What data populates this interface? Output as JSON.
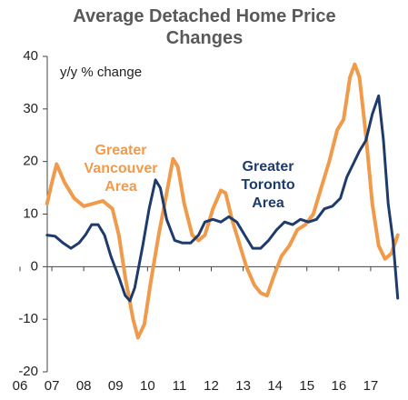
{
  "chart_data": {
    "type": "line",
    "title": "Average Detached Home Price Changes",
    "y_label": "y/y % change",
    "xlim": [
      2006,
      2018
    ],
    "xticks": [
      {
        "value": 2006,
        "label": "06"
      },
      {
        "value": 2007,
        "label": "07"
      },
      {
        "value": 2008,
        "label": "08"
      },
      {
        "value": 2009,
        "label": "09"
      },
      {
        "value": 2010,
        "label": "10"
      },
      {
        "value": 2011,
        "label": "11"
      },
      {
        "value": 2012,
        "label": "12"
      },
      {
        "value": 2013,
        "label": "13"
      },
      {
        "value": 2014,
        "label": "14"
      },
      {
        "value": 2015,
        "label": "15"
      },
      {
        "value": 2016,
        "label": "16"
      },
      {
        "value": 2017,
        "label": "17"
      }
    ],
    "ylim": [
      -20,
      40
    ],
    "yticks": [
      -20,
      -10,
      0,
      10,
      20,
      30,
      40
    ],
    "series": [
      {
        "name": "Greater Vancouver Area",
        "color": "#f09a4c",
        "x": [
          2006.85,
          2007.0,
          2007.15,
          2007.4,
          2007.7,
          2008.0,
          2008.3,
          2008.6,
          2008.9,
          2009.1,
          2009.3,
          2009.55,
          2009.7,
          2009.9,
          2010.1,
          2010.35,
          2010.6,
          2010.8,
          2010.95,
          2011.15,
          2011.4,
          2011.6,
          2011.8,
          2012.05,
          2012.3,
          2012.45,
          2012.65,
          2012.9,
          2013.1,
          2013.35,
          2013.55,
          2013.75,
          2013.95,
          2014.2,
          2014.45,
          2014.7,
          2014.95,
          2015.2,
          2015.45,
          2015.7,
          2015.95,
          2016.15,
          2016.35,
          2016.5,
          2016.65,
          2016.85,
          2017.05,
          2017.25,
          2017.45,
          2017.65,
          2017.85
        ],
        "values": [
          12,
          16,
          19.5,
          16,
          13,
          11.5,
          12,
          12.5,
          11,
          6,
          -2,
          -10,
          -13.5,
          -11,
          -3,
          6,
          14,
          20.5,
          19,
          12,
          6,
          5,
          6,
          11,
          14.5,
          14,
          9,
          4,
          0,
          -3.5,
          -5,
          -5.5,
          -2,
          2,
          4,
          7,
          8,
          10,
          15,
          20,
          26,
          28,
          36,
          38.5,
          36,
          25,
          12,
          4,
          1.5,
          2.5,
          6
        ]
      },
      {
        "name": "Greater Toronto Area",
        "color": "#1f3b6b",
        "x": [
          2006.85,
          2007.1,
          2007.35,
          2007.6,
          2007.85,
          2008.05,
          2008.25,
          2008.45,
          2008.65,
          2008.85,
          2009.1,
          2009.3,
          2009.45,
          2009.6,
          2009.85,
          2010.05,
          2010.25,
          2010.4,
          2010.6,
          2010.85,
          2011.1,
          2011.35,
          2011.6,
          2011.8,
          2012.05,
          2012.3,
          2012.55,
          2012.8,
          2013.05,
          2013.3,
          2013.55,
          2013.8,
          2014.05,
          2014.3,
          2014.55,
          2014.8,
          2015.05,
          2015.3,
          2015.55,
          2015.8,
          2016.05,
          2016.25,
          2016.45,
          2016.65,
          2016.85,
          2017.05,
          2017.25,
          2017.4,
          2017.55,
          2017.7,
          2017.85
        ],
        "values": [
          6,
          5.8,
          4.5,
          3.5,
          4.5,
          6,
          8,
          8,
          6,
          2,
          -2,
          -5.5,
          -6.5,
          -4,
          4,
          11,
          16.5,
          15,
          9,
          5,
          4.5,
          4.5,
          6,
          8.5,
          9,
          8.5,
          9.5,
          8.5,
          6,
          3.5,
          3.5,
          5,
          7,
          8.5,
          8,
          9,
          8.5,
          9,
          11,
          11.5,
          13,
          17,
          19.5,
          22,
          24,
          29,
          32.5,
          24,
          12,
          5,
          -6
        ]
      }
    ]
  }
}
